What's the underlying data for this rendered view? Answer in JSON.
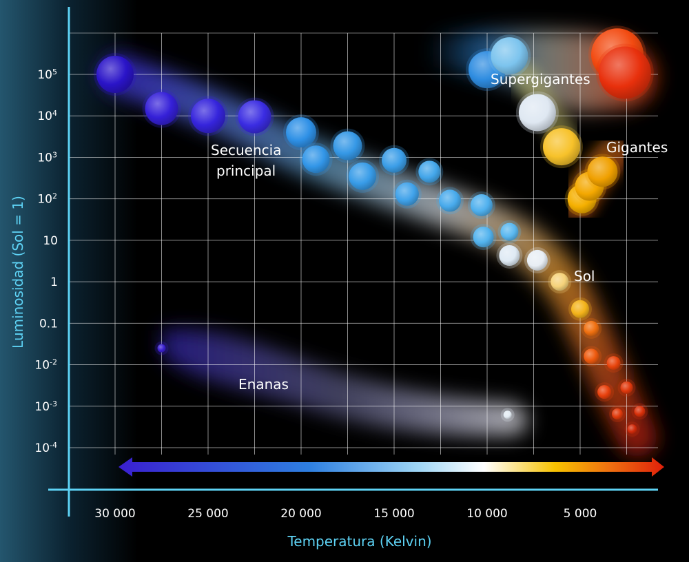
{
  "chart_data": {
    "type": "scatter",
    "xlabel": "Temperatura (Kelvin)",
    "ylabel": "Luminosidad (Sol = 1)",
    "x_scale": "reversed",
    "y_scale": "log",
    "xlim": [
      32500,
      1500
    ],
    "ylim": [
      4e-05,
      1000000
    ],
    "grid": true,
    "x_ticks": [
      {
        "value": 30000,
        "label": "30 000"
      },
      {
        "value": 25000,
        "label": "25 000"
      },
      {
        "value": 20000,
        "label": "20 000"
      },
      {
        "value": 15000,
        "label": "15 000"
      },
      {
        "value": 10000,
        "label": "10 000"
      },
      {
        "value": 5000,
        "label": "5 000"
      }
    ],
    "y_ticks": [
      {
        "value": 100000,
        "base": "10",
        "exp": "5"
      },
      {
        "value": 10000,
        "base": "10",
        "exp": "4"
      },
      {
        "value": 1000,
        "base": "10",
        "exp": "3"
      },
      {
        "value": 100,
        "base": "10",
        "exp": "2"
      },
      {
        "value": 10,
        "base": "10",
        "exp": ""
      },
      {
        "value": 1,
        "base": "1",
        "exp": ""
      },
      {
        "value": 0.1,
        "base": "0.1",
        "exp": ""
      },
      {
        "value": 0.01,
        "base": "10",
        "exp": "-2"
      },
      {
        "value": 0.001,
        "base": "10",
        "exp": "-3"
      },
      {
        "value": 0.0001,
        "base": "10",
        "exp": "-4"
      }
    ],
    "region_labels": {
      "main_sequence": [
        "Secuencia",
        "principal"
      ],
      "supergiants": "Supergigantes",
      "giants": "Gigantes",
      "sun": "Sol",
      "dwarfs": "Enanas"
    },
    "colors": {
      "axis": "#5ed3f5",
      "grid": "#ffffff",
      "hot": "#3a1fd0",
      "blue": "#2d8fe0",
      "white": "#ffffff",
      "yellow": "#f5b400",
      "red": "#e0200a"
    },
    "stars": [
      {
        "group": "main",
        "x": 30000,
        "y": 100000,
        "r": 27,
        "color": "#2a14c8"
      },
      {
        "group": "main",
        "x": 27500,
        "y": 15000,
        "r": 24,
        "color": "#3520d8"
      },
      {
        "group": "main",
        "x": 25000,
        "y": 10000,
        "r": 25,
        "color": "#3524dc"
      },
      {
        "group": "main",
        "x": 22500,
        "y": 9500,
        "r": 24,
        "color": "#3a2ce2"
      },
      {
        "group": "main",
        "x": 20000,
        "y": 4000,
        "r": 22,
        "color": "#2e90e6"
      },
      {
        "group": "main",
        "x": 19200,
        "y": 900,
        "r": 20,
        "color": "#3296e8"
      },
      {
        "group": "main",
        "x": 17500,
        "y": 1900,
        "r": 21,
        "color": "#3598e6"
      },
      {
        "group": "main",
        "x": 16700,
        "y": 350,
        "r": 20,
        "color": "#389ce8"
      },
      {
        "group": "main",
        "x": 15000,
        "y": 850,
        "r": 18,
        "color": "#3b9ee8"
      },
      {
        "group": "main",
        "x": 14300,
        "y": 130,
        "r": 17,
        "color": "#40a2ea"
      },
      {
        "group": "main",
        "x": 13100,
        "y": 450,
        "r": 16,
        "color": "#43a6ea"
      },
      {
        "group": "main",
        "x": 12000,
        "y": 90,
        "r": 16,
        "color": "#48aaec"
      },
      {
        "group": "main",
        "x": 10300,
        "y": 70,
        "r": 16,
        "color": "#4fb0ee"
      },
      {
        "group": "main",
        "x": 10200,
        "y": 12,
        "r": 15,
        "color": "#52b3ee"
      },
      {
        "group": "main",
        "x": 8800,
        "y": 16,
        "r": 13,
        "color": "#5ab8f0"
      },
      {
        "group": "main",
        "x": 8800,
        "y": 4.3,
        "r": 15,
        "color": "#dfeaf4"
      },
      {
        "group": "main",
        "x": 7300,
        "y": 3.3,
        "r": 15,
        "color": "#e8eef4"
      },
      {
        "group": "main",
        "x": 6100,
        "y": 1,
        "r": 13,
        "color": "#f5d27a"
      },
      {
        "group": "main",
        "x": 5000,
        "y": 0.22,
        "r": 13,
        "color": "#f4b31a"
      },
      {
        "group": "main",
        "x": 4400,
        "y": 0.075,
        "r": 11,
        "color": "#f07010"
      },
      {
        "group": "main",
        "x": 4400,
        "y": 0.016,
        "r": 11,
        "color": "#ee5a0e"
      },
      {
        "group": "main",
        "x": 3200,
        "y": 0.011,
        "r": 10,
        "color": "#e8440c"
      },
      {
        "group": "main",
        "x": 3700,
        "y": 0.0022,
        "r": 10,
        "color": "#e8400c"
      },
      {
        "group": "main",
        "x": 2500,
        "y": 0.0028,
        "r": 9,
        "color": "#e0380c"
      },
      {
        "group": "main",
        "x": 3000,
        "y": 0.00065,
        "r": 8,
        "color": "#e03a0c"
      },
      {
        "group": "main",
        "x": 1800,
        "y": 0.00075,
        "r": 8,
        "color": "#d8300a"
      },
      {
        "group": "main",
        "x": 2200,
        "y": 0.00028,
        "r": 7,
        "color": "#d02a0a"
      },
      {
        "group": "supergiants",
        "x": 10000,
        "y": 130000,
        "r": 27,
        "color": "#2e8ce0"
      },
      {
        "group": "supergiants",
        "x": 8800,
        "y": 280000,
        "r": 27,
        "color": "#7cc4ee"
      },
      {
        "group": "supergiants",
        "x": 7300,
        "y": 12000,
        "r": 27,
        "color": "#dfe8f2"
      },
      {
        "group": "supergiants",
        "x": 3000,
        "y": 300000,
        "r": 38,
        "color": "#f24a10"
      },
      {
        "group": "supergiants",
        "x": 2600,
        "y": 110000,
        "r": 38,
        "color": "#e8300c"
      },
      {
        "group": "giants",
        "x": 6000,
        "y": 1800,
        "r": 27,
        "color": "#f7c22a"
      },
      {
        "group": "giants",
        "x": 4900,
        "y": 100,
        "r": 21,
        "color": "#f5b000"
      },
      {
        "group": "giants",
        "x": 4500,
        "y": 200,
        "r": 21,
        "color": "#f4a800"
      },
      {
        "group": "giants",
        "x": 3800,
        "y": 450,
        "r": 22,
        "color": "#f0a000"
      },
      {
        "group": "dwarfs",
        "x": 27500,
        "y": 0.025,
        "r": 6,
        "color": "#3a20d0"
      },
      {
        "group": "dwarfs",
        "x": 8900,
        "y": 0.00062,
        "r": 6,
        "color": "#e4ecf4"
      }
    ]
  }
}
